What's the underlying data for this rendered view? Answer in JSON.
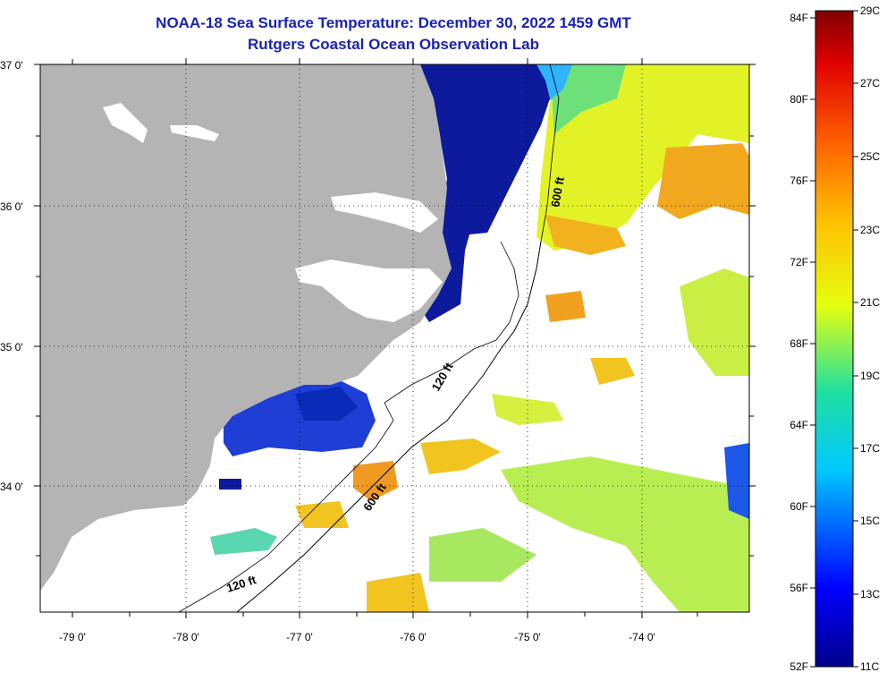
{
  "header": {
    "title": "NOAA-18 Sea Surface Temperature:  December 30, 2022 1459 GMT",
    "subtitle": "Rutgers Coastal Ocean Observation Lab"
  },
  "map": {
    "lat_labels": [
      "37 0'",
      "36 0'",
      "35 0'",
      "34 0'"
    ],
    "lon_labels": [
      "-79 0'",
      "-78 0'",
      "-77 0'",
      "-76 0'",
      "-75 0'",
      "-74 0'"
    ],
    "contour_labels": [
      "600 ft",
      "120 ft",
      "600 ft",
      "120 ft"
    ],
    "colors": {
      "land": "#b4b4b4",
      "cloud": "#ffffff",
      "cold": "#0a1a9a",
      "warm": "#f0a020"
    }
  },
  "colorbar": {
    "fahrenheit_labels": [
      "84F",
      "80F",
      "76F",
      "72F",
      "68F",
      "64F",
      "60F",
      "56F",
      "52F"
    ],
    "celsius_labels": [
      "29C",
      "27C",
      "25C",
      "23C",
      "21C",
      "19C",
      "17C",
      "15C",
      "13C",
      "11C"
    ]
  }
}
